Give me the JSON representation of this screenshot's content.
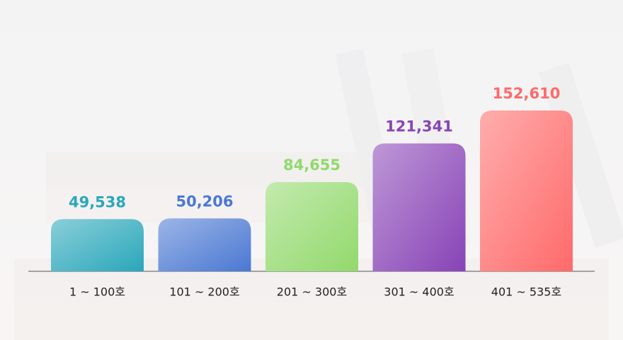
{
  "chart_data": {
    "type": "bar",
    "categories": [
      "1 ~ 100호",
      "101 ~ 200호",
      "201 ~ 300호",
      "301 ~ 400호",
      "401 ~ 535호"
    ],
    "values": [
      49538,
      50206,
      84655,
      121341,
      152610
    ],
    "value_labels": [
      "49,538",
      "50,206",
      "84,655",
      "121,341",
      "152,610"
    ],
    "colors": [
      "#2aa7ba",
      "#4a78d2",
      "#92d96c",
      "#8843b6",
      "#ff6a6a"
    ]
  }
}
